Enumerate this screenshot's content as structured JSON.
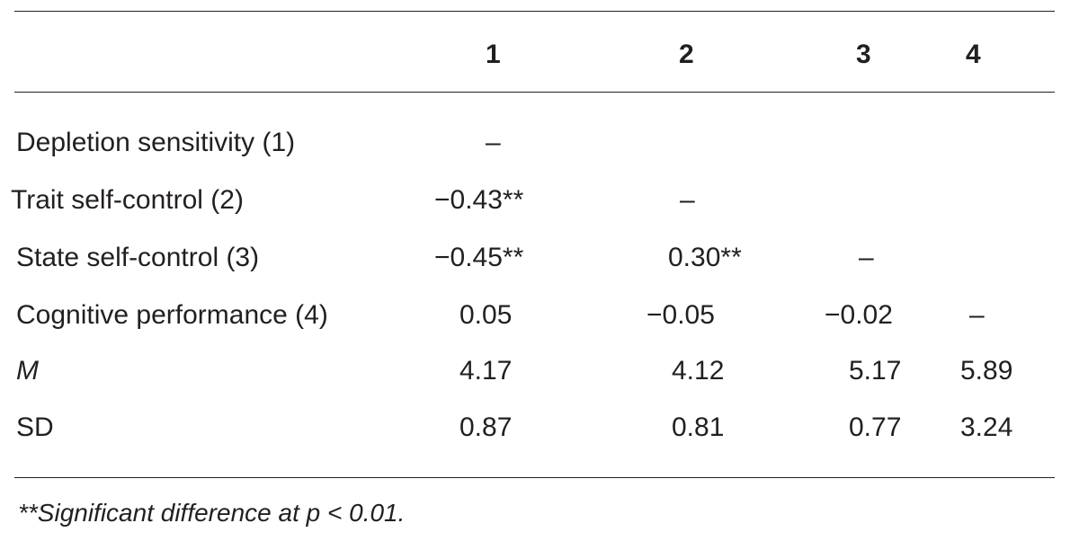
{
  "table": {
    "columns": [
      "1",
      "2",
      "3",
      "4"
    ],
    "rows": [
      {
        "label": "Depletion sensitivity (1)",
        "italic": false,
        "cells": [
          "–",
          "",
          "",
          ""
        ]
      },
      {
        "label": "Trait self-control (2)",
        "italic": false,
        "cells": [
          "−0.43**",
          "–",
          "",
          ""
        ]
      },
      {
        "label": "State self-control (3)",
        "italic": false,
        "cells": [
          "−0.45**",
          "0.30**",
          "–",
          ""
        ]
      },
      {
        "label": "Cognitive performance (4)",
        "italic": false,
        "cells": [
          "0.05",
          "−0.05",
          "−0.02",
          "–"
        ]
      },
      {
        "label": "M",
        "italic": true,
        "cells": [
          "4.17",
          "4.12",
          "5.17",
          "5.89"
        ]
      },
      {
        "label": "SD",
        "italic": false,
        "cells": [
          "0.87",
          "0.81",
          "0.77",
          "3.24"
        ]
      }
    ]
  },
  "footnote": "**Significant difference at p < 0.01."
}
